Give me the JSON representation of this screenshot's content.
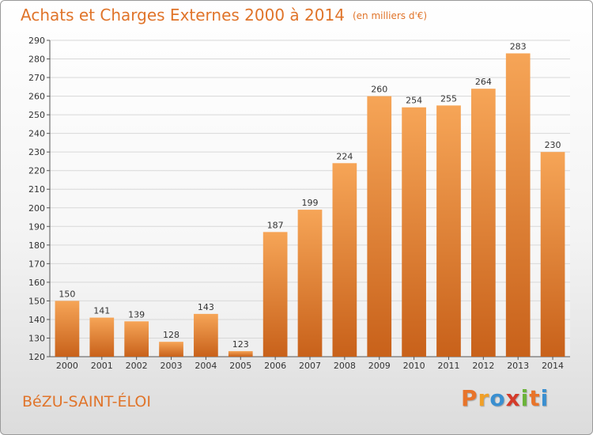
{
  "title": "Achats et Charges Externes 2000 à 2014",
  "subtitle": "(en milliers d'€)",
  "commune": "BéZU-SAINT-ÉLOI",
  "logo": {
    "letters": [
      "P",
      "r",
      "o",
      "x",
      "i",
      "t",
      "i"
    ],
    "colors": [
      "#e8742a",
      "#f0a028",
      "#3a8fd0",
      "#d43b2a",
      "#6bb33a",
      "#e8742a",
      "#3a8fd0"
    ]
  },
  "colors": {
    "accent": "#e0742a",
    "bar_top": "#f6a557",
    "bar_bottom": "#c8611a",
    "grid": "#d8d8d8"
  },
  "chart_data": {
    "type": "bar",
    "categories": [
      "2000",
      "2001",
      "2002",
      "2003",
      "2004",
      "2005",
      "2006",
      "2007",
      "2008",
      "2009",
      "2010",
      "2011",
      "2012",
      "2013",
      "2014"
    ],
    "values": [
      150,
      141,
      139,
      128,
      143,
      123,
      187,
      199,
      224,
      260,
      254,
      255,
      264,
      283,
      230
    ],
    "data_labels": [
      "150",
      "141",
      "139",
      "128",
      "143",
      "123",
      "187",
      "199",
      "224",
      "260",
      "254",
      "255",
      "264",
      "283",
      "230"
    ],
    "yticks": [
      "120",
      "130",
      "140",
      "150",
      "160",
      "170",
      "180",
      "190",
      "200",
      "210",
      "220",
      "230",
      "240",
      "250",
      "260",
      "270",
      "280",
      "290"
    ],
    "ylim": [
      120,
      290
    ],
    "grid": true,
    "xlabel": "",
    "ylabel": ""
  }
}
